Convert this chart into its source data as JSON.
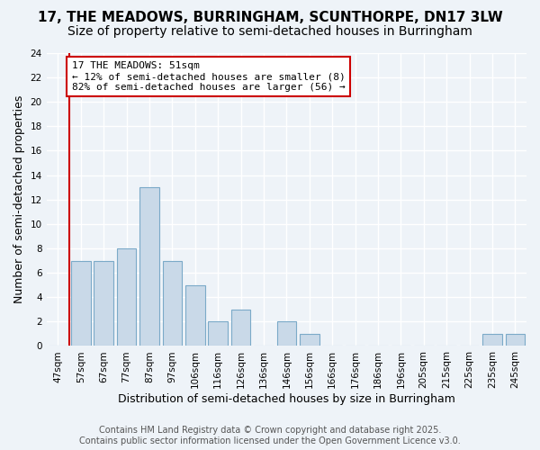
{
  "title_line1": "17, THE MEADOWS, BURRINGHAM, SCUNTHORPE, DN17 3LW",
  "title_line2": "Size of property relative to semi-detached houses in Burringham",
  "xlabel": "Distribution of semi-detached houses by size in Burringham",
  "ylabel": "Number of semi-detached properties",
  "categories": [
    "47sqm",
    "57sqm",
    "67sqm",
    "77sqm",
    "87sqm",
    "97sqm",
    "106sqm",
    "116sqm",
    "126sqm",
    "136sqm",
    "146sqm",
    "156sqm",
    "166sqm",
    "176sqm",
    "186sqm",
    "196sqm",
    "205sqm",
    "215sqm",
    "225sqm",
    "235sqm",
    "245sqm"
  ],
  "values": [
    0,
    7,
    7,
    8,
    13,
    7,
    5,
    2,
    3,
    0,
    2,
    1,
    0,
    0,
    0,
    0,
    0,
    0,
    0,
    1,
    1
  ],
  "bar_color": "#c9d9e8",
  "bar_edge_color": "#7baac8",
  "background_color": "#eef3f8",
  "grid_color": "#ffffff",
  "annotation_text": "17 THE MEADOWS: 51sqm\n← 12% of semi-detached houses are smaller (8)\n82% of semi-detached houses are larger (56) →",
  "annotation_box_color": "#ffffff",
  "annotation_box_edge": "#cc0000",
  "vline_color": "#cc0000",
  "vline_x": 0.5,
  "ylim": [
    0,
    24
  ],
  "yticks": [
    0,
    2,
    4,
    6,
    8,
    10,
    12,
    14,
    16,
    18,
    20,
    22,
    24
  ],
  "footnote": "Contains HM Land Registry data © Crown copyright and database right 2025.\nContains public sector information licensed under the Open Government Licence v3.0.",
  "title_fontsize": 11,
  "subtitle_fontsize": 10,
  "axis_label_fontsize": 9,
  "tick_fontsize": 7.5,
  "annotation_fontsize": 8,
  "footnote_fontsize": 7
}
